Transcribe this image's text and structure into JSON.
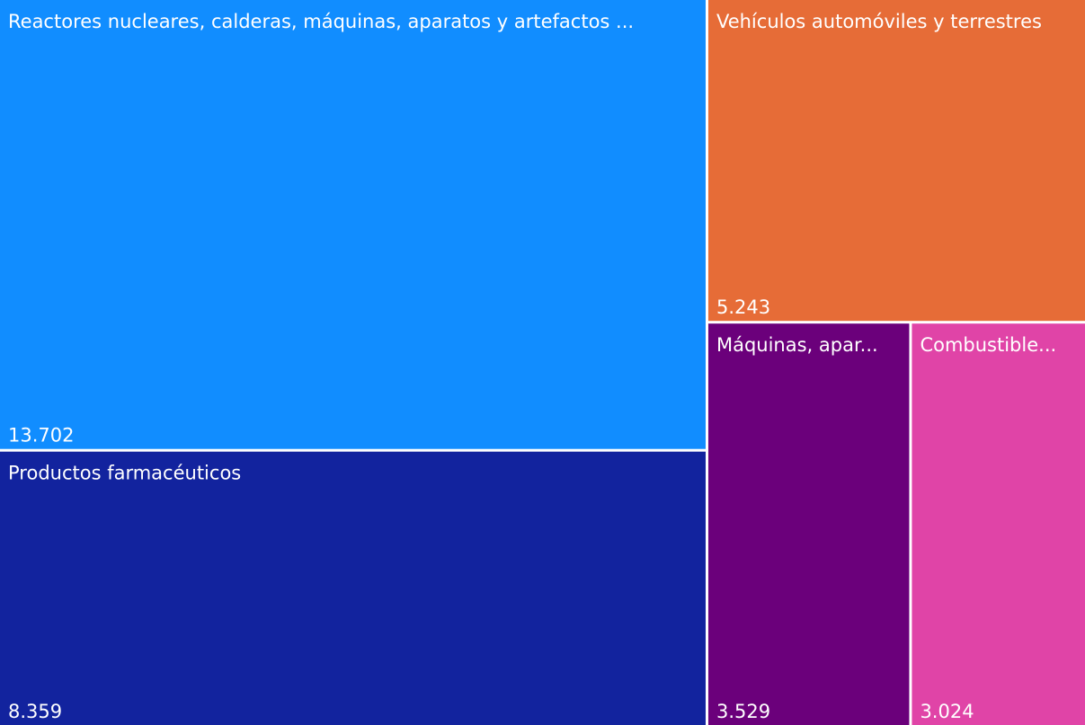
{
  "chart_data": {
    "type": "treemap",
    "categories": [
      "Reactores nucleares, calderas, máquinas, aparatos y artefactos ...",
      "Productos farmacéuticos",
      "Vehículos automóviles y terrestres",
      "Máquinas, apar...",
      "Combustible..."
    ],
    "values": [
      13.702,
      8.359,
      5.243,
      3.529,
      3.024
    ],
    "colors": [
      "#118dff",
      "#12239e",
      "#e66c37",
      "#6b007b",
      "#e044a7"
    ]
  }
}
